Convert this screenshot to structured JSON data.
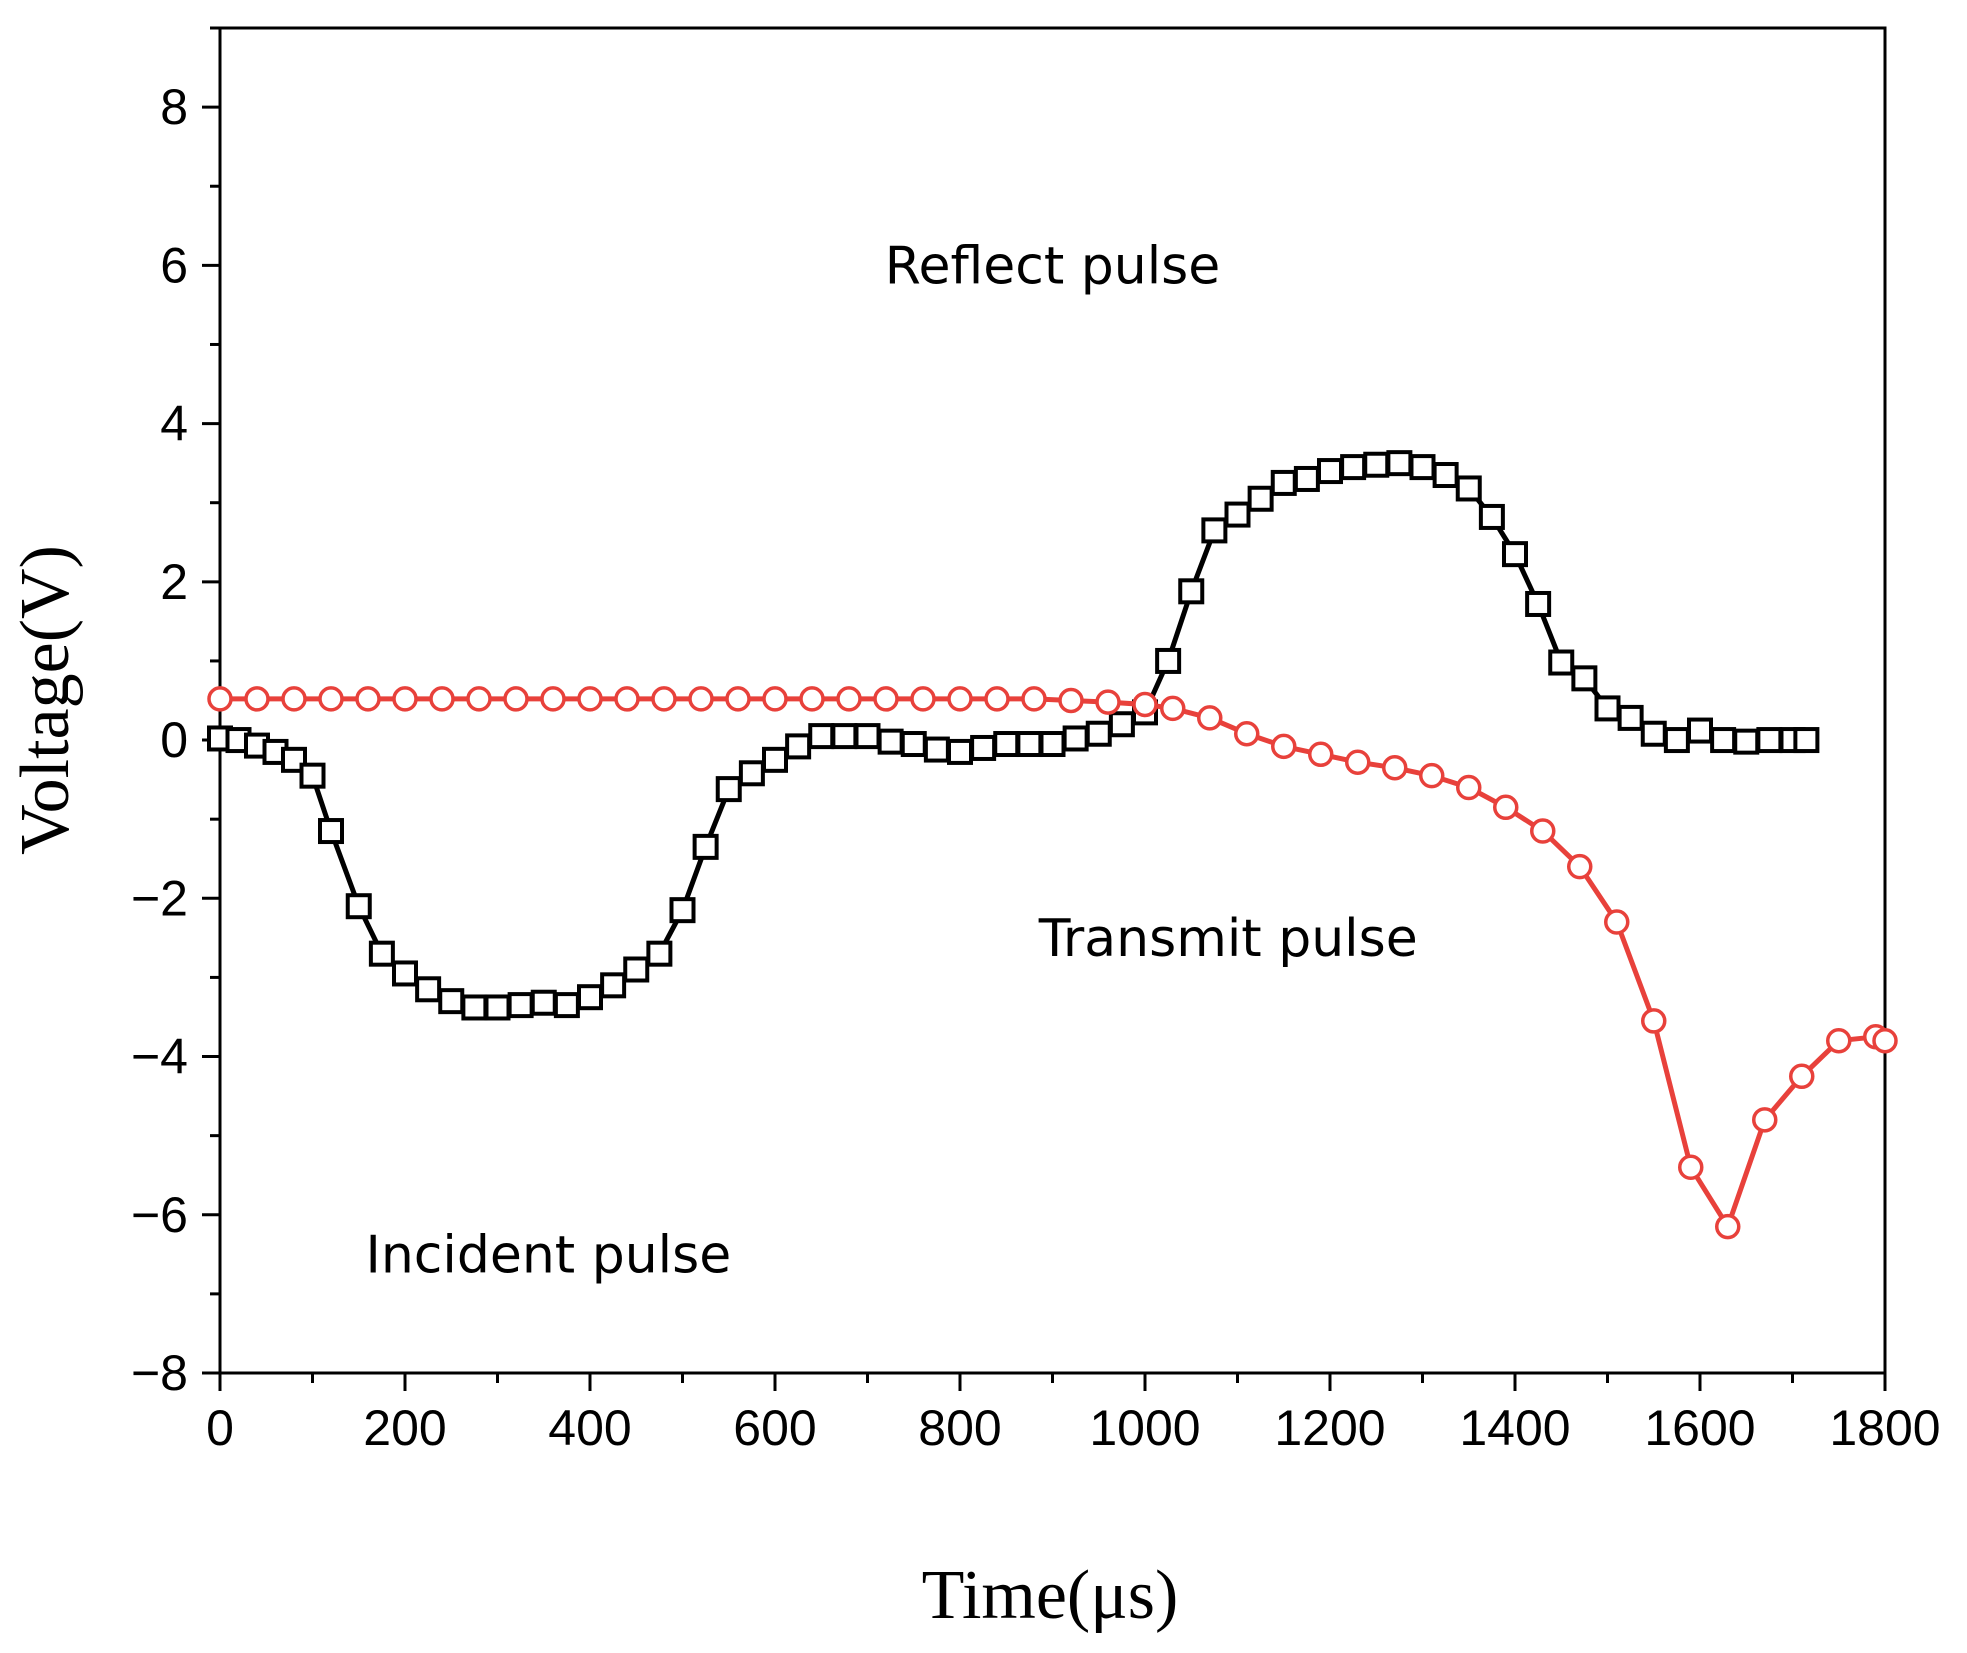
{
  "chart_data": {
    "type": "line",
    "xlabel": "Time(μs)",
    "ylabel": "Voltage(V)",
    "xlim": [
      0,
      1800
    ],
    "ylim": [
      -8,
      9
    ],
    "xticks": [
      0,
      200,
      400,
      600,
      800,
      1000,
      1200,
      1400,
      1600,
      1800
    ],
    "yticks": [
      -8,
      -6,
      -4,
      -2,
      0,
      2,
      4,
      6,
      8
    ],
    "xtick_labels": [
      "0",
      "200",
      "400",
      "600",
      "800",
      "1000",
      "1200",
      "1400",
      "1600",
      "1800"
    ],
    "ytick_labels": [
      "−8",
      "−6",
      "−4",
      "−2",
      "0",
      "2",
      "4",
      "6",
      "8"
    ],
    "grid": false,
    "annotations": [
      {
        "text": "Reflect pulse",
        "x": 900,
        "y": 6.0
      },
      {
        "text": "Transmit pulse",
        "x": 1090,
        "y": -2.5
      },
      {
        "text": "Incident pulse",
        "x": 355,
        "y": -6.5
      }
    ],
    "series": [
      {
        "name": "Incident/Reflect pulse",
        "marker": "square",
        "color": "#000000",
        "x": [
          0,
          20,
          40,
          60,
          80,
          100,
          120,
          150,
          175,
          200,
          225,
          250,
          275,
          300,
          325,
          350,
          375,
          400,
          425,
          450,
          475,
          500,
          525,
          550,
          575,
          600,
          625,
          650,
          675,
          700,
          725,
          750,
          775,
          800,
          825,
          850,
          875,
          900,
          925,
          950,
          975,
          1000,
          1025,
          1050,
          1075,
          1100,
          1125,
          1150,
          1175,
          1200,
          1225,
          1250,
          1275,
          1300,
          1325,
          1350,
          1375,
          1400,
          1425,
          1450,
          1475,
          1500,
          1525,
          1550,
          1575,
          1600,
          1625,
          1650,
          1675,
          1700,
          1715
        ],
        "values": [
          0.02,
          0.0,
          -0.07,
          -0.15,
          -0.25,
          -0.45,
          -1.15,
          -2.1,
          -2.7,
          -2.95,
          -3.15,
          -3.3,
          -3.38,
          -3.38,
          -3.35,
          -3.32,
          -3.35,
          -3.25,
          -3.1,
          -2.9,
          -2.7,
          -2.15,
          -1.35,
          -0.62,
          -0.42,
          -0.25,
          -0.08,
          0.05,
          0.05,
          0.05,
          -0.02,
          -0.05,
          -0.12,
          -0.15,
          -0.1,
          -0.05,
          -0.05,
          -0.05,
          0.02,
          0.08,
          0.2,
          0.35,
          1.0,
          1.88,
          2.65,
          2.85,
          3.05,
          3.25,
          3.3,
          3.4,
          3.45,
          3.48,
          3.5,
          3.45,
          3.35,
          3.18,
          2.82,
          2.35,
          1.72,
          0.98,
          0.78,
          0.4,
          0.28,
          0.08,
          0.0,
          0.12,
          0.0,
          -0.02,
          0.0,
          0.0,
          0.0
        ]
      },
      {
        "name": "Transmit pulse",
        "marker": "circle",
        "color": "#e8413b",
        "x": [
          0,
          40,
          80,
          120,
          160,
          200,
          240,
          280,
          320,
          360,
          400,
          440,
          480,
          520,
          560,
          600,
          640,
          680,
          720,
          760,
          800,
          840,
          880,
          920,
          960,
          1000,
          1030,
          1070,
          1110,
          1150,
          1190,
          1230,
          1270,
          1310,
          1350,
          1390,
          1430,
          1470,
          1510,
          1550,
          1590,
          1630,
          1670,
          1710,
          1750,
          1790,
          1800
        ],
        "values": [
          0.52,
          0.52,
          0.52,
          0.52,
          0.52,
          0.52,
          0.52,
          0.52,
          0.52,
          0.52,
          0.52,
          0.52,
          0.52,
          0.52,
          0.52,
          0.52,
          0.52,
          0.52,
          0.52,
          0.52,
          0.52,
          0.52,
          0.52,
          0.5,
          0.48,
          0.45,
          0.4,
          0.28,
          0.08,
          -0.08,
          -0.18,
          -0.28,
          -0.35,
          -0.45,
          -0.6,
          -0.85,
          -1.15,
          -1.6,
          -2.3,
          -3.55,
          -5.4,
          -6.15,
          -4.8,
          -4.25,
          -3.8,
          -3.75,
          -3.8
        ]
      }
    ]
  }
}
